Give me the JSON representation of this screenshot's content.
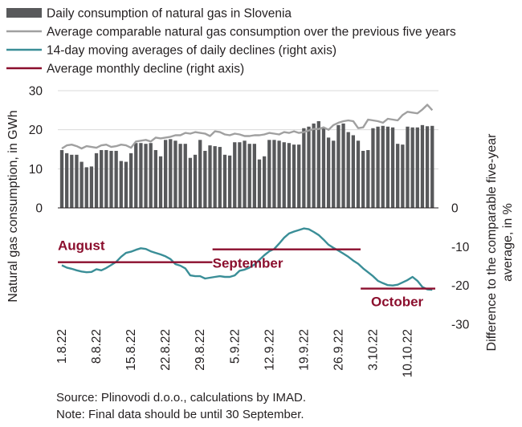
{
  "chart_data": {
    "type": "bar",
    "legend": {
      "placement": "top-left",
      "items": [
        {
          "label": "Daily consumption of natural gas in Slovenia",
          "kind": "bar",
          "color": "#58595b"
        },
        {
          "label": "Average comparable natural gas consumption over the previous five years",
          "kind": "line",
          "color": "#a0a0a0"
        },
        {
          "label": "14-day moving averages of daily declines (right axis)",
          "kind": "line",
          "color": "#3a8e97"
        },
        {
          "label": "Average monthly decline (right axis)",
          "kind": "line",
          "color": "#8b0e2d"
        }
      ]
    },
    "left_axis": {
      "label": "Natural gas consumption, in GWh",
      "ticks": [
        0,
        10,
        20,
        30
      ],
      "range": [
        0,
        30
      ]
    },
    "right_axis": {
      "label_lines": [
        "Difference to the comparable five-year",
        "average, in %"
      ],
      "ticks": [
        0,
        -10,
        -20,
        -30
      ],
      "range": [
        -30,
        0
      ]
    },
    "x_tick_labels": [
      "1.8.22",
      "8.8.22",
      "15.8.22",
      "22.8.22",
      "29.8.22",
      "5.9.22",
      "12.9.22",
      "19.9.22",
      "26.9.22",
      "3.10.22",
      "10.10.22"
    ],
    "x_tick_day_index": [
      0,
      7,
      14,
      21,
      28,
      35,
      42,
      49,
      56,
      63,
      70
    ],
    "days": 76,
    "series": [
      {
        "name": "Daily consumption of natural gas in Slovenia",
        "type": "bar",
        "axis": "left",
        "color": "#58595b",
        "values": [
          14.8,
          14.0,
          13.6,
          13.6,
          11.8,
          10.4,
          10.6,
          14.0,
          14.8,
          14.8,
          14.6,
          14.6,
          12.0,
          11.8,
          14.0,
          16.6,
          16.6,
          16.4,
          16.6,
          14.8,
          13.2,
          17.4,
          17.6,
          17.2,
          16.4,
          16.4,
          12.8,
          13.6,
          17.4,
          14.6,
          16.0,
          15.8,
          15.6,
          13.6,
          13.4,
          16.8,
          16.8,
          17.2,
          16.4,
          16.4,
          12.4,
          13.2,
          17.4,
          17.4,
          17.2,
          16.8,
          16.6,
          16.2,
          16.2,
          20.4,
          20.8,
          21.6,
          22.2,
          20.4,
          18.0,
          17.2,
          21.2,
          21.6,
          19.4,
          18.6,
          17.2,
          14.6,
          14.8,
          20.4,
          20.8,
          21.0,
          20.8,
          20.6,
          16.4,
          16.2,
          20.8,
          20.6,
          20.6,
          21.2,
          20.9,
          21.0
        ]
      },
      {
        "name": "Average comparable natural gas consumption over the previous five years",
        "type": "line",
        "axis": "left",
        "color": "#a0a0a0",
        "values": [
          15.2,
          16.0,
          16.2,
          15.8,
          15.2,
          15.8,
          15.6,
          15.4,
          16.0,
          16.2,
          15.6,
          15.8,
          16.2,
          16.0,
          15.4,
          17.0,
          17.2,
          17.4,
          17.0,
          18.0,
          17.8,
          18.0,
          18.2,
          18.6,
          18.6,
          19.2,
          19.0,
          19.4,
          19.2,
          19.0,
          18.4,
          19.6,
          19.4,
          18.8,
          18.6,
          19.0,
          18.8,
          18.4,
          18.4,
          18.6,
          18.6,
          18.8,
          19.2,
          19.0,
          18.8,
          19.4,
          19.2,
          19.6,
          19.2,
          19.4,
          19.8,
          20.2,
          20.2,
          20.6,
          20.0,
          21.2,
          21.8,
          22.2,
          22.4,
          22.2,
          20.4,
          20.6,
          22.6,
          22.4,
          22.2,
          21.8,
          22.8,
          22.6,
          22.4,
          23.8,
          24.6,
          24.4,
          24.2,
          25.2,
          26.4,
          25.0
        ]
      },
      {
        "name": "14-day moving averages of daily declines (right axis)",
        "type": "line",
        "axis": "right",
        "color": "#3a8e97",
        "values": [
          -14.8,
          -15.4,
          -15.7,
          -16.1,
          -16.4,
          -16.6,
          -16.5,
          -15.8,
          -16.1,
          -15.5,
          -14.7,
          -13.9,
          -12.6,
          -11.6,
          -11.3,
          -10.8,
          -10.4,
          -10.6,
          -11.2,
          -11.6,
          -12.0,
          -12.5,
          -13.2,
          -14.5,
          -14.9,
          -15.6,
          -17.4,
          -17.6,
          -17.6,
          -18.2,
          -18.0,
          -17.8,
          -17.6,
          -17.8,
          -17.8,
          -17.4,
          -16.2,
          -15.9,
          -15.4,
          -14.6,
          -13.4,
          -12.2,
          -11.2,
          -10.6,
          -9.2,
          -7.7,
          -6.6,
          -6.1,
          -5.7,
          -5.3,
          -5.5,
          -6.2,
          -7.0,
          -8.2,
          -9.5,
          -10.3,
          -11.0,
          -11.8,
          -12.6,
          -13.6,
          -14.4,
          -15.6,
          -16.6,
          -17.6,
          -18.8,
          -19.4,
          -19.9,
          -20.0,
          -19.8,
          -19.2,
          -18.6,
          -17.8,
          -18.8,
          -20.4,
          -21.0,
          -21.1
        ]
      },
      {
        "name": "Average monthly decline (right axis)",
        "type": "step",
        "axis": "right",
        "color": "#8b0e2d",
        "segments": [
          {
            "label": "August",
            "start_day": 0,
            "end_day": 30,
            "value": -14.0
          },
          {
            "label": "September",
            "start_day": 31,
            "end_day": 60,
            "value": -10.7
          },
          {
            "label": "October",
            "start_day": 61,
            "end_day": 75,
            "value": -20.8
          }
        ]
      }
    ]
  },
  "footer": {
    "source": "Source: Plinovodi d.o.o., calculations by IMAD.",
    "note": "Note: Final data should be until 30 September."
  }
}
